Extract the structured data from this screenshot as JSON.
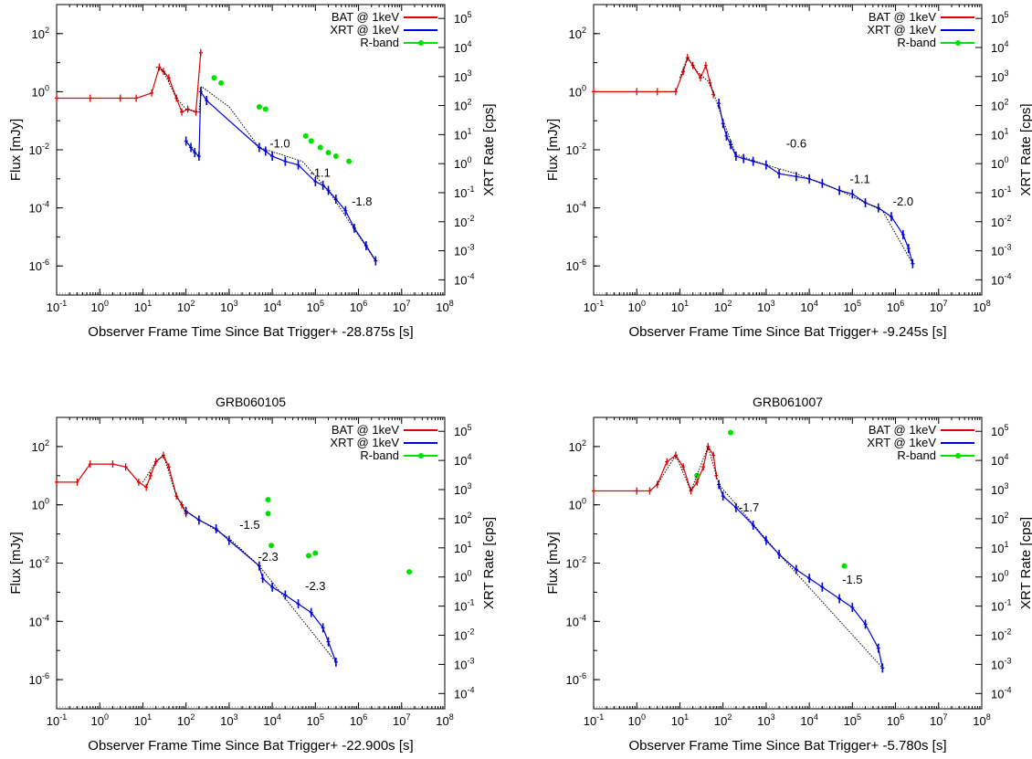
{
  "colors": {
    "bat": "#e00000",
    "xrt": "#0000e0",
    "rband": "#00e000",
    "model": "#000000"
  },
  "chart_data": [
    {
      "type": "scatter",
      "title": "",
      "xlabel": "Observer Frame Time Since Bat Trigger+ -28.875s [s]",
      "ylabel": "Flux [mJy]",
      "y2label": "XRT Rate [cps]",
      "xscale": "log",
      "yscale": "log",
      "xlim": [
        0.1,
        100000000
      ],
      "ylim": [
        1e-07,
        1000
      ],
      "y2lim": [
        3e-05,
        300000
      ],
      "x_ticks": [
        "10-1",
        "100",
        "101",
        "102",
        "103",
        "104",
        "105",
        "106",
        "107",
        "108"
      ],
      "y_ticks": [
        "10-6",
        "10-4",
        "10-2",
        "100",
        "102"
      ],
      "y2_ticks": [
        "10-4",
        "10-3",
        "10-2",
        "10-1",
        "100",
        "101",
        "102",
        "103",
        "104",
        "105"
      ],
      "legend": [
        "BAT @ 1keV",
        "XRT @ 1keV",
        "R-band"
      ],
      "legend_position": "top-right",
      "annotations": [
        {
          "text": "-1.0",
          "x": 15000,
          "y": 0.012
        },
        {
          "text": "-1.1",
          "x": 130000,
          "y": 0.0012
        },
        {
          "text": "-1.8",
          "x": 1200000,
          "y": 0.00012
        }
      ],
      "series": [
        {
          "name": "BAT @ 1keV",
          "points": [
            [
              0.1,
              0.6
            ],
            [
              0.6,
              0.6
            ],
            [
              3,
              0.6
            ],
            [
              7,
              0.6
            ],
            [
              16,
              0.9
            ],
            [
              24,
              7
            ],
            [
              30,
              5
            ],
            [
              40,
              3
            ],
            [
              60,
              0.6
            ],
            [
              80,
              0.2
            ],
            [
              110,
              0.25
            ],
            [
              170,
              0.2
            ],
            [
              220,
              22
            ]
          ]
        },
        {
          "name": "XRT @ 1keV",
          "points": [
            [
              100,
              0.02
            ],
            [
              130,
              0.012
            ],
            [
              160,
              0.008
            ],
            [
              200,
              0.006
            ],
            [
              220,
              1
            ],
            [
              300,
              0.5
            ],
            [
              5000,
              0.012
            ],
            [
              7000,
              0.009
            ],
            [
              10000,
              0.006
            ],
            [
              20000,
              0.004
            ],
            [
              40000,
              0.003
            ],
            [
              100000,
              0.0008
            ],
            [
              150000,
              0.0006
            ],
            [
              200000,
              0.0004
            ],
            [
              300000,
              0.0002
            ],
            [
              500000,
              8e-05
            ],
            [
              800000,
              2e-05
            ],
            [
              1500000,
              5e-06
            ],
            [
              2500000,
              1.5e-06
            ]
          ]
        },
        {
          "name": "R-band",
          "points": [
            [
              450,
              3
            ],
            [
              650,
              2
            ],
            [
              5000,
              0.3
            ],
            [
              7000,
              0.25
            ],
            [
              60000,
              0.03
            ],
            [
              80000,
              0.02
            ],
            [
              130000,
              0.012
            ],
            [
              200000,
              0.008
            ],
            [
              300000,
              0.006
            ],
            [
              600000,
              0.004
            ]
          ]
        },
        {
          "name": "",
          "points": [
            [
              20,
              7
            ],
            [
              30,
              5
            ],
            [
              60,
              0.6
            ],
            [
              100,
              0.25
            ],
            [
              200,
              0.2
            ],
            [
              230,
              1.5
            ],
            [
              1000,
              0.3
            ],
            [
              5000,
              0.012
            ],
            [
              50000,
              0.004
            ],
            [
              200000,
              0.0004
            ],
            [
              2500000,
              1.5e-06
            ]
          ]
        }
      ]
    },
    {
      "type": "scatter",
      "title": "",
      "xlabel": "Observer Frame Time Since Bat Trigger+ -9.245s [s]",
      "ylabel": "Flux [mJy]",
      "y2label": "XRT Rate [cps]",
      "xscale": "log",
      "yscale": "log",
      "xlim": [
        0.1,
        100000000
      ],
      "ylim": [
        1e-07,
        1000
      ],
      "y2lim": [
        3e-05,
        300000
      ],
      "x_ticks": [
        "10-1",
        "100",
        "101",
        "102",
        "103",
        "104",
        "105",
        "106",
        "107",
        "108"
      ],
      "y_ticks": [
        "10-6",
        "10-4",
        "10-2",
        "100",
        "102"
      ],
      "y2_ticks": [
        "10-4",
        "10-3",
        "10-2",
        "10-1",
        "100",
        "101",
        "102",
        "103",
        "104",
        "105"
      ],
      "legend": [
        "BAT @ 1keV",
        "XRT @ 1keV",
        "R-band"
      ],
      "legend_position": "top-right",
      "annotations": [
        {
          "text": "-0.6",
          "x": 5000,
          "y": 0.012
        },
        {
          "text": "-1.1",
          "x": 150000,
          "y": 0.0007
        },
        {
          "text": "-2.0",
          "x": 1500000,
          "y": 0.00012
        }
      ],
      "series": [
        {
          "name": "BAT @ 1keV",
          "points": [
            [
              0.1,
              1
            ],
            [
              1,
              1
            ],
            [
              3,
              1
            ],
            [
              8,
              1
            ],
            [
              12,
              5
            ],
            [
              15,
              15
            ],
            [
              20,
              8
            ],
            [
              30,
              3
            ],
            [
              40,
              8
            ],
            [
              50,
              2
            ],
            [
              60,
              0.8
            ]
          ]
        },
        {
          "name": "XRT @ 1keV",
          "points": [
            [
              80,
              0.4
            ],
            [
              100,
              0.08
            ],
            [
              120,
              0.03
            ],
            [
              150,
              0.015
            ],
            [
              200,
              0.006
            ],
            [
              300,
              0.005
            ],
            [
              500,
              0.004
            ],
            [
              1000,
              0.003
            ],
            [
              2000,
              0.0015
            ],
            [
              5000,
              0.0012
            ],
            [
              10000,
              0.001
            ],
            [
              20000,
              0.0007
            ],
            [
              50000,
              0.0004
            ],
            [
              100000,
              0.0003
            ],
            [
              200000,
              0.00015
            ],
            [
              400000,
              0.0001
            ],
            [
              800000,
              5e-05
            ],
            [
              1500000,
              1.2e-05
            ],
            [
              2000000,
              4e-06
            ],
            [
              2500000,
              1.2e-06
            ]
          ]
        },
        {
          "name": "R-band",
          "points": []
        },
        {
          "name": "",
          "points": [
            [
              10,
              3
            ],
            [
              15,
              15
            ],
            [
              25,
              5
            ],
            [
              50,
              2
            ],
            [
              100,
              0.1
            ],
            [
              200,
              0.007
            ],
            [
              1000,
              0.003
            ],
            [
              5000,
              0.0015
            ],
            [
              50000,
              0.0004
            ],
            [
              500000,
              8e-05
            ],
            [
              2500000,
              1.2e-06
            ]
          ]
        }
      ]
    },
    {
      "type": "scatter",
      "title": "GRB060105",
      "xlabel": "Observer Frame Time Since Bat Trigger+ -22.900s [s]",
      "ylabel": "Flux [mJy]",
      "y2label": "XRT Rate [cps]",
      "xscale": "log",
      "yscale": "log",
      "xlim": [
        0.1,
        100000000
      ],
      "ylim": [
        1e-07,
        1000
      ],
      "y2lim": [
        3e-05,
        300000
      ],
      "x_ticks": [
        "10-1",
        "100",
        "101",
        "102",
        "103",
        "104",
        "105",
        "106",
        "107",
        "108"
      ],
      "y_ticks": [
        "10-6",
        "10-4",
        "10-2",
        "100",
        "102"
      ],
      "y2_ticks": [
        "10-4",
        "10-3",
        "10-2",
        "10-1",
        "100",
        "101",
        "102",
        "103",
        "104",
        "105"
      ],
      "legend": [
        "BAT @ 1keV",
        "XRT @ 1keV",
        "R-band"
      ],
      "legend_position": "top-right",
      "annotations": [
        {
          "text": "-1.5",
          "x": 3000,
          "y": 0.15
        },
        {
          "text": "-2.3",
          "x": 8000,
          "y": 0.012
        },
        {
          "text": "-2.3",
          "x": 100000,
          "y": 0.0012
        }
      ],
      "series": [
        {
          "name": "BAT @ 1keV",
          "points": [
            [
              0.1,
              6
            ],
            [
              0.3,
              6
            ],
            [
              0.6,
              25
            ],
            [
              2,
              25
            ],
            [
              4,
              20
            ],
            [
              8,
              6
            ],
            [
              12,
              4
            ],
            [
              15,
              10
            ],
            [
              20,
              30
            ],
            [
              30,
              50
            ],
            [
              40,
              20
            ],
            [
              60,
              2
            ],
            [
              80,
              1
            ],
            [
              100,
              0.5
            ]
          ]
        },
        {
          "name": "XRT @ 1keV",
          "points": [
            [
              100,
              0.6
            ],
            [
              200,
              0.3
            ],
            [
              500,
              0.15
            ],
            [
              1000,
              0.06
            ],
            [
              5000,
              0.008
            ],
            [
              6000,
              0.003
            ],
            [
              10000,
              0.0015
            ],
            [
              20000,
              0.0008
            ],
            [
              40000,
              0.0004
            ],
            [
              80000,
              0.0002
            ],
            [
              150000,
              6e-05
            ],
            [
              200000,
              2e-05
            ],
            [
              300000,
              4e-06
            ]
          ]
        },
        {
          "name": "R-band",
          "points": [
            [
              8000,
              1.5
            ],
            [
              8000,
              0.5
            ],
            [
              9500,
              0.04
            ],
            [
              70000,
              0.018
            ],
            [
              100000,
              0.022
            ],
            [
              15000000,
              0.005
            ]
          ]
        },
        {
          "name": "",
          "points": [
            [
              10,
              6
            ],
            [
              20,
              30
            ],
            [
              30,
              50
            ],
            [
              60,
              2
            ],
            [
              100,
              0.6
            ],
            [
              1000,
              0.07
            ],
            [
              5000,
              0.008
            ],
            [
              300000,
              4e-06
            ]
          ]
        }
      ]
    },
    {
      "type": "scatter",
      "title": "GRB061007",
      "xlabel": "Observer Frame Time Since Bat Trigger+ -5.780s [s]",
      "ylabel": "Flux [mJy]",
      "y2label": "XRT Rate [cps]",
      "xscale": "log",
      "yscale": "log",
      "xlim": [
        0.1,
        100000000
      ],
      "ylim": [
        1e-07,
        1000
      ],
      "y2lim": [
        3e-05,
        300000
      ],
      "x_ticks": [
        "10-1",
        "100",
        "101",
        "102",
        "103",
        "104",
        "105",
        "106",
        "107",
        "108"
      ],
      "y_ticks": [
        "10-6",
        "10-4",
        "10-2",
        "100",
        "102"
      ],
      "y2_ticks": [
        "10-4",
        "10-3",
        "10-2",
        "10-1",
        "100",
        "101",
        "102",
        "103",
        "104",
        "105"
      ],
      "legend": [
        "BAT @ 1keV",
        "XRT @ 1keV",
        "R-band"
      ],
      "legend_position": "top-right",
      "annotations": [
        {
          "text": "-1.7",
          "x": 400,
          "y": 0.6
        },
        {
          "text": "-1.5",
          "x": 100000,
          "y": 0.002
        }
      ],
      "series": [
        {
          "name": "BAT @ 1keV",
          "points": [
            [
              0.1,
              3
            ],
            [
              1,
              3
            ],
            [
              2,
              3
            ],
            [
              3,
              5
            ],
            [
              5,
              30
            ],
            [
              8,
              50
            ],
            [
              12,
              20
            ],
            [
              18,
              3
            ],
            [
              25,
              6
            ],
            [
              35,
              20
            ],
            [
              45,
              100
            ],
            [
              60,
              50
            ],
            [
              70,
              10
            ]
          ]
        },
        {
          "name": "XRT @ 1keV",
          "points": [
            [
              80,
              5
            ],
            [
              100,
              2
            ],
            [
              200,
              0.8
            ],
            [
              500,
              0.2
            ],
            [
              1000,
              0.06
            ],
            [
              2000,
              0.02
            ],
            [
              5000,
              0.006
            ],
            [
              10000,
              0.003
            ],
            [
              20000,
              0.0015
            ],
            [
              50000,
              0.0006
            ],
            [
              100000,
              0.0003
            ],
            [
              200000,
              8e-05
            ],
            [
              400000,
              1.2e-05
            ],
            [
              500000,
              2.5e-06
            ]
          ]
        },
        {
          "name": "R-band",
          "points": [
            [
              25,
              10
            ],
            [
              150,
              300
            ],
            [
              65000,
              0.008
            ]
          ]
        },
        {
          "name": "",
          "points": [
            [
              3,
              5
            ],
            [
              8,
              50
            ],
            [
              18,
              3
            ],
            [
              45,
              100
            ],
            [
              80,
              5
            ],
            [
              2000,
              0.02
            ],
            [
              500000,
              2.5e-06
            ]
          ]
        }
      ]
    }
  ]
}
